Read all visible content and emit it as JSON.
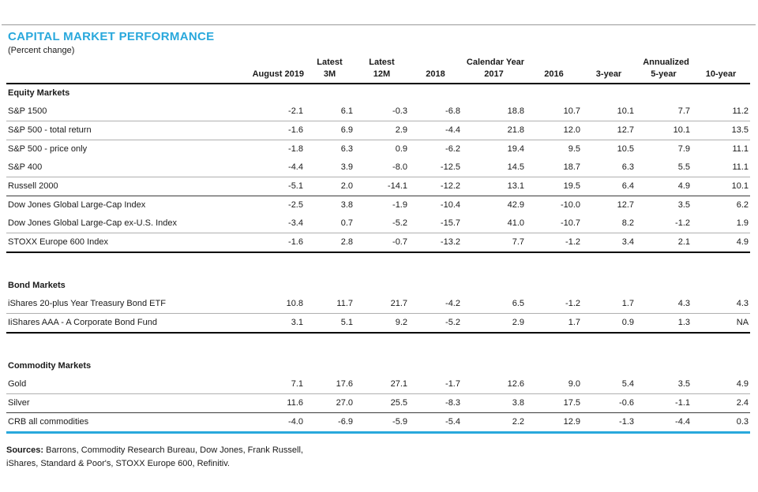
{
  "title": "CAPITAL MARKET PERFORMANCE",
  "subtitle": "(Percent change)",
  "colors": {
    "accent": "#29A8DC"
  },
  "table": {
    "group_headers": {
      "latest": "Latest",
      "calendar_year": "Calendar Year",
      "annualized": "Annualized"
    },
    "columns": [
      "August 2019",
      "3M",
      "12M",
      "2018",
      "2017",
      "2016",
      "3-year",
      "5-year",
      "10-year"
    ],
    "sections": [
      {
        "label": "Equity Markets",
        "gap_above": false,
        "rows": [
          {
            "name": "S&P 1500",
            "border": "thin",
            "values": [
              "-2.1",
              "6.1",
              "-0.3",
              "-6.8",
              "18.8",
              "10.7",
              "10.1",
              "7.7",
              "11.2"
            ]
          },
          {
            "name": "S&P 500  - total return",
            "border": "thin",
            "values": [
              "-1.6",
              "6.9",
              "2.9",
              "-4.4",
              "21.8",
              "12.0",
              "12.7",
              "10.1",
              "13.5"
            ]
          },
          {
            "name": "S&P 500  - price only",
            "border": "none",
            "values": [
              "-1.8",
              "6.3",
              "0.9",
              "-6.2",
              "19.4",
              "9.5",
              "10.5",
              "7.9",
              "11.1"
            ]
          },
          {
            "name": "S&P 400",
            "border": "thin",
            "values": [
              "-4.4",
              "3.9",
              "-8.0",
              "-12.5",
              "14.5",
              "18.7",
              "6.3",
              "5.5",
              "11.1"
            ]
          },
          {
            "name": "Russell 2000",
            "border": "dark",
            "values": [
              "-5.1",
              "2.0",
              "-14.1",
              "-12.2",
              "13.1",
              "19.5",
              "6.4",
              "4.9",
              "10.1"
            ]
          },
          {
            "name": "Dow Jones Global Large-Cap Index",
            "border": "none",
            "values": [
              "-2.5",
              "3.8",
              "-1.9",
              "-10.4",
              "42.9",
              "-10.0",
              "12.7",
              "3.5",
              "6.2"
            ]
          },
          {
            "name": "Dow Jones Global Large-Cap ex-U.S. Index",
            "border": "thin",
            "values": [
              "-3.4",
              "0.7",
              "-5.2",
              "-15.7",
              "41.0",
              "-10.7",
              "8.2",
              "-1.2",
              "1.9"
            ]
          },
          {
            "name": "STOXX Europe 600 Index",
            "border": "thick",
            "values": [
              "-1.6",
              "2.8",
              "-0.7",
              "-13.2",
              "7.7",
              "-1.2",
              "3.4",
              "2.1",
              "4.9"
            ]
          }
        ]
      },
      {
        "label": "Bond Markets",
        "gap_above": true,
        "rows": [
          {
            "name": "iShares 20-plus Year Treasury Bond ETF",
            "border": "thin",
            "values": [
              "10.8",
              "11.7",
              "21.7",
              "-4.2",
              "6.5",
              "-1.2",
              "1.7",
              "4.3",
              "4.3"
            ]
          },
          {
            "name": "IiShares AAA - A Corporate Bond Fund",
            "border": "thick",
            "values": [
              "3.1",
              "5.1",
              "9.2",
              "-5.2",
              "2.9",
              "1.7",
              "0.9",
              "1.3",
              "NA"
            ]
          }
        ]
      },
      {
        "label": "Commodity Markets",
        "gap_above": true,
        "rows": [
          {
            "name": "Gold",
            "border": "thin",
            "values": [
              "7.1",
              "17.6",
              "27.1",
              "-1.7",
              "12.6",
              "9.0",
              "5.4",
              "3.5",
              "4.9"
            ]
          },
          {
            "name": "Silver",
            "border": "dark",
            "values": [
              "11.6",
              "27.0",
              "25.5",
              "-8.3",
              "3.8",
              "17.5",
              "-0.6",
              "-1.1",
              "2.4"
            ]
          },
          {
            "name": "CRB all commodities",
            "border": "accent",
            "values": [
              "-4.0",
              "-6.9",
              "-5.9",
              "-5.4",
              "2.2",
              "12.9",
              "-1.3",
              "-4.4",
              "0.3"
            ]
          }
        ]
      }
    ]
  },
  "footer": {
    "sources_label": "Sources:",
    "sources_line1": " Barrons, Commodity Research Bureau, Dow Jones, Frank Russell,",
    "sources_line2": "iShares, Standard & Poor's, STOXX Europe 600, Refinitiv."
  }
}
